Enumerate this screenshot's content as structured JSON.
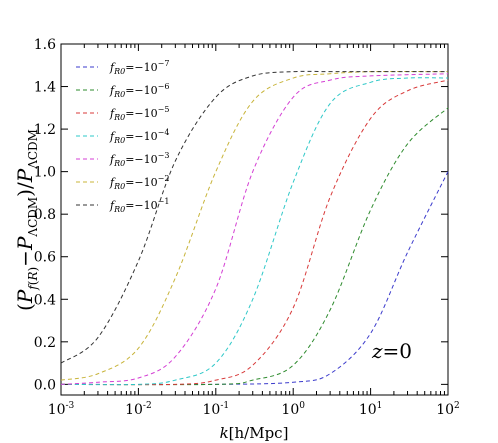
{
  "chart_data": {
    "type": "line",
    "x_scale": "log",
    "xlim": [
      0.001,
      100
    ],
    "ylim": [
      -0.05,
      1.6
    ],
    "x_ticks": [
      {
        "value": 0.001,
        "base": "10",
        "exp": "-3"
      },
      {
        "value": 0.01,
        "base": "10",
        "exp": "-2"
      },
      {
        "value": 0.1,
        "base": "10",
        "exp": "-1"
      },
      {
        "value": 1,
        "base": "10",
        "exp": "0"
      },
      {
        "value": 10,
        "base": "10",
        "exp": "1"
      },
      {
        "value": 100,
        "base": "10",
        "exp": "2"
      }
    ],
    "y_ticks": [
      "0.0",
      "0.2",
      "0.4",
      "0.6",
      "0.8",
      "1.0",
      "1.2",
      "1.4",
      "1.6"
    ],
    "xlabel": "k[h/Mpc]",
    "ylabel": "(P_{f(R)} − P_{ΛCDM}) / P_{ΛCDM}",
    "annotation": "z = 0",
    "legend_position": "upper-left",
    "series": [
      {
        "name": "f_R0 = −10^−7",
        "color": "#3b3bcc",
        "x": [
          0.001,
          0.1,
          1,
          3,
          10,
          30,
          100
        ],
        "y": [
          0.0,
          0.0,
          0.01,
          0.05,
          0.24,
          0.62,
          1.0
        ]
      },
      {
        "name": "f_R0 = −10^−6",
        "color": "#2e8b2e",
        "x": [
          0.001,
          0.1,
          0.3,
          1,
          3,
          10,
          30,
          100
        ],
        "y": [
          0.0,
          0.0,
          0.02,
          0.09,
          0.35,
          0.82,
          1.13,
          1.3
        ]
      },
      {
        "name": "f_R0 = −10^−5",
        "color": "#d83a3a",
        "x": [
          0.001,
          0.03,
          0.1,
          0.3,
          1,
          3,
          10,
          30,
          100
        ],
        "y": [
          0.0,
          0.0,
          0.02,
          0.09,
          0.36,
          0.88,
          1.25,
          1.38,
          1.43
        ]
      },
      {
        "name": "f_R0 = −10^−4",
        "color": "#2ec8c8",
        "x": [
          0.001,
          0.01,
          0.03,
          0.1,
          0.3,
          1,
          3,
          10,
          30,
          100
        ],
        "y": [
          0.0,
          0.0,
          0.02,
          0.1,
          0.4,
          0.95,
          1.32,
          1.42,
          1.44,
          1.44
        ]
      },
      {
        "name": "f_R0 = −10^−3",
        "color": "#d43fd4",
        "x": [
          0.001,
          0.003,
          0.01,
          0.03,
          0.1,
          0.3,
          1,
          3,
          10,
          100
        ],
        "y": [
          0.0,
          0.01,
          0.03,
          0.13,
          0.45,
          1.0,
          1.35,
          1.43,
          1.45,
          1.46
        ]
      },
      {
        "name": "f_R0 = −10^−2",
        "color": "#c8b43a",
        "x": [
          0.001,
          0.003,
          0.01,
          0.03,
          0.1,
          0.3,
          1,
          3,
          10,
          100
        ],
        "y": [
          0.02,
          0.05,
          0.17,
          0.5,
          1.0,
          1.33,
          1.44,
          1.46,
          1.47,
          1.47
        ]
      },
      {
        "name": "f_R0 = −10^−1",
        "color": "#333333",
        "x": [
          0.001,
          0.003,
          0.01,
          0.03,
          0.1,
          0.3,
          1,
          3,
          10,
          100
        ],
        "y": [
          0.1,
          0.22,
          0.58,
          1.05,
          1.35,
          1.45,
          1.47,
          1.47,
          1.47,
          1.47
        ]
      }
    ]
  },
  "legend": [
    {
      "label_main": "f",
      "label_sub": "R0",
      "label_rel": "=−10",
      "label_exp": "−7"
    },
    {
      "label_main": "f",
      "label_sub": "R0",
      "label_rel": "=−10",
      "label_exp": "−6"
    },
    {
      "label_main": "f",
      "label_sub": "R0",
      "label_rel": "=−10",
      "label_exp": "−5"
    },
    {
      "label_main": "f",
      "label_sub": "R0",
      "label_rel": "=−10",
      "label_exp": "−4"
    },
    {
      "label_main": "f",
      "label_sub": "R0",
      "label_rel": "=−10",
      "label_exp": "−3"
    },
    {
      "label_main": "f",
      "label_sub": "R0",
      "label_rel": "=−10",
      "label_exp": "−2"
    },
    {
      "label_main": "f",
      "label_sub": "R0",
      "label_rel": "=−10",
      "label_exp": "−1"
    }
  ]
}
